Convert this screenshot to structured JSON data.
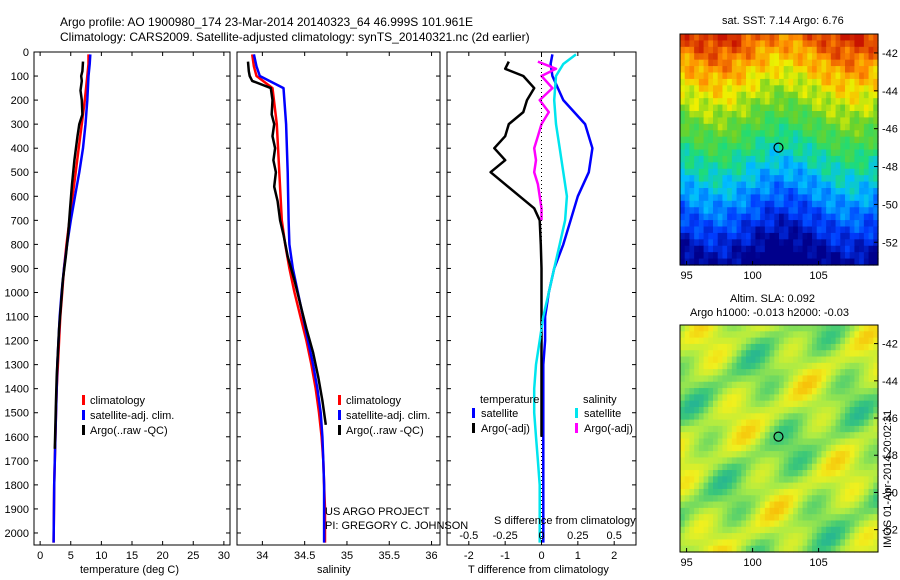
{
  "header": {
    "line1": "Argo profile: AO 1900980_174 23-Mar-2014 20140323_64 46.999S 101.961E",
    "line2": "Climatology: CARS2009. Satellite-adjusted climatology: synTS_20140321.nc (2d earlier)"
  },
  "colors": {
    "red": "#ff0000",
    "blue": "#0000ff",
    "black": "#000000",
    "cyan": "#00e5ee",
    "magenta": "#ff00ff"
  },
  "chart_data": [
    {
      "type": "line",
      "id": "temperature",
      "xlabel": "temperature (deg C)",
      "ylabel": "",
      "xlim": [
        -1,
        31
      ],
      "ylim": [
        2050,
        0
      ],
      "xticks": [
        0,
        5,
        10,
        15,
        20,
        25,
        30
      ],
      "yticks": [
        0,
        100,
        200,
        300,
        400,
        500,
        600,
        700,
        800,
        900,
        1000,
        1100,
        1200,
        1300,
        1400,
        1500,
        1600,
        1700,
        1800,
        1900,
        2000
      ],
      "legend": [
        "climatology",
        "satellite-adj. clim.",
        "Argo(..raw -QC)"
      ],
      "series": [
        {
          "name": "climatology",
          "color": "red",
          "x": [
            7.9,
            7.9,
            7.7,
            7.3,
            6.8,
            6.3,
            5.8,
            5.3,
            4.8,
            4.3,
            3.9,
            3.6,
            3.3,
            3.1,
            2.9,
            2.7,
            2.6,
            2.5,
            2.4,
            2.3,
            2.2
          ],
          "y": [
            10,
            50,
            100,
            200,
            300,
            400,
            500,
            600,
            700,
            800,
            900,
            1000,
            1100,
            1200,
            1300,
            1400,
            1500,
            1600,
            1700,
            1800,
            2040
          ]
        },
        {
          "name": "satellite-adj. clim.",
          "color": "blue",
          "x": [
            8.2,
            8.1,
            7.9,
            7.7,
            7.4,
            7.0,
            6.4,
            5.7,
            5.0,
            4.4,
            3.9,
            3.5,
            3.2,
            3.0,
            2.8,
            2.7,
            2.6,
            2.5,
            2.4,
            2.3,
            2.2
          ],
          "y": [
            10,
            50,
            100,
            200,
            300,
            400,
            500,
            600,
            700,
            800,
            900,
            1000,
            1100,
            1200,
            1300,
            1400,
            1500,
            1600,
            1700,
            1800,
            2040
          ]
        },
        {
          "name": "Argo(..raw -QC)",
          "color": "black",
          "x": [
            7.0,
            6.9,
            6.7,
            6.8,
            6.6,
            6.8,
            6.9,
            6.4,
            6.1,
            5.6,
            5.2,
            4.9,
            4.6,
            4.2,
            3.7,
            3.4,
            3.1,
            2.9,
            2.7,
            2.6,
            2.5,
            2.4
          ],
          "y": [
            40,
            80,
            100,
            120,
            160,
            200,
            260,
            300,
            350,
            450,
            550,
            650,
            750,
            850,
            950,
            1050,
            1150,
            1250,
            1350,
            1450,
            1550,
            1650
          ]
        }
      ]
    },
    {
      "type": "line",
      "id": "salinity",
      "xlabel": "salinity",
      "ylabel": "",
      "xlim": [
        33.7,
        36.1
      ],
      "ylim": [
        2050,
        0
      ],
      "xticks": [
        34,
        34.5,
        35,
        35.5,
        36
      ],
      "legend": [
        "climatology",
        "satellite-adj. clim.",
        "Argo(..raw -QC)"
      ],
      "series": [
        {
          "name": "climatology",
          "color": "red",
          "x": [
            33.88,
            33.9,
            33.93,
            34.12,
            34.17,
            34.2,
            34.23,
            34.27,
            34.32,
            34.38,
            34.45,
            34.52,
            34.58,
            34.63,
            34.67,
            34.7,
            34.72,
            34.73,
            34.74,
            34.74
          ],
          "y": [
            10,
            60,
            100,
            150,
            300,
            500,
            700,
            800,
            900,
            1000,
            1100,
            1200,
            1300,
            1400,
            1500,
            1600,
            1700,
            1800,
            1900,
            2040
          ]
        },
        {
          "name": "satellite-adj. clim.",
          "color": "blue",
          "x": [
            33.9,
            33.93,
            33.97,
            34.25,
            34.28,
            34.3,
            34.31,
            34.32,
            34.36,
            34.42,
            34.48,
            34.54,
            34.6,
            34.65,
            34.69,
            34.71,
            34.72,
            34.73,
            34.73,
            34.73
          ],
          "y": [
            10,
            60,
            100,
            150,
            300,
            500,
            700,
            800,
            900,
            1000,
            1100,
            1200,
            1300,
            1400,
            1500,
            1600,
            1700,
            1800,
            1900,
            2040
          ]
        },
        {
          "name": "Argo(..raw -QC)",
          "color": "black",
          "x": [
            33.83,
            33.84,
            33.85,
            33.88,
            34.1,
            34.12,
            34.11,
            34.14,
            34.12,
            34.15,
            34.13,
            34.16,
            34.14,
            34.18,
            34.21,
            34.25,
            34.3,
            34.38,
            34.45,
            34.52,
            34.6,
            34.66,
            34.71,
            34.75
          ],
          "y": [
            40,
            80,
            100,
            120,
            150,
            200,
            260,
            300,
            350,
            400,
            450,
            500,
            560,
            620,
            700,
            760,
            850,
            950,
            1050,
            1150,
            1250,
            1350,
            1450,
            1550
          ]
        }
      ]
    },
    {
      "type": "line",
      "id": "difference",
      "xlabel": "T difference from climatology",
      "top_axis_label": "S difference from climatology",
      "xlim": [
        -2.6,
        2.6
      ],
      "ylim": [
        2050,
        0
      ],
      "xticks": [
        -2,
        -1,
        0,
        1,
        2
      ],
      "top_ticks": [
        -0.5,
        -0.25,
        0,
        0.25,
        0.5
      ],
      "legend_headers": [
        "temperature",
        "salinity"
      ],
      "legend": [
        "satellite",
        "Argo(-adj)",
        "satellite",
        "Argo(-adj)"
      ],
      "series": [
        {
          "name": "temperature satellite",
          "color": "blue",
          "x": [
            0.3,
            0.25,
            0.3,
            0.6,
            1.2,
            1.4,
            1.3,
            1.0,
            0.8,
            0.6,
            0.35,
            0.2,
            0.1,
            0.1,
            0.05,
            0.05,
            0.05,
            0.05,
            0.05,
            0.05,
            0.05
          ],
          "y": [
            10,
            50,
            100,
            200,
            300,
            400,
            500,
            600,
            700,
            800,
            900,
            1000,
            1100,
            1200,
            1300,
            1400,
            1500,
            1600,
            1700,
            1800,
            2040
          ]
        },
        {
          "name": "temperature Argo(-adj)",
          "color": "black",
          "x": [
            -0.9,
            -1.0,
            -0.5,
            -0.2,
            -0.4,
            -0.5,
            -0.9,
            -1.0,
            -1.3,
            -1.0,
            -1.4,
            -1.0,
            -0.6,
            -0.2,
            -0.05,
            -0.02,
            0,
            0,
            0,
            0
          ],
          "y": [
            40,
            70,
            100,
            150,
            200,
            250,
            300,
            350,
            400,
            450,
            500,
            550,
            600,
            650,
            700,
            800,
            900,
            1000,
            1200,
            1600
          ]
        },
        {
          "name": "salinity satellite",
          "color": "cyan",
          "x": [
            0.95,
            0.6,
            0.4,
            0.35,
            0.4,
            0.5,
            0.6,
            0.7,
            0.65,
            0.5,
            0.35,
            0.2,
            0.05,
            -0.05,
            -0.15,
            -0.2,
            -0.2,
            -0.15,
            -0.1,
            -0.05,
            -0.05
          ],
          "y": [
            10,
            50,
            100,
            200,
            300,
            400,
            500,
            600,
            700,
            800,
            900,
            1000,
            1100,
            1200,
            1300,
            1400,
            1500,
            1600,
            1700,
            1800,
            2040
          ]
        },
        {
          "name": "salinity Argo(-adj)",
          "color": "magenta",
          "x": [
            -0.1,
            0.4,
            0.0,
            0.3,
            -0.05,
            0.2,
            0.0,
            -0.1,
            -0.2,
            -0.15,
            -0.2,
            -0.1,
            -0.05,
            0.0,
            0.0
          ],
          "y": [
            40,
            70,
            100,
            150,
            200,
            250,
            300,
            350,
            400,
            450,
            500,
            550,
            600,
            650,
            700
          ]
        }
      ]
    },
    {
      "type": "heatmap",
      "id": "sst-map",
      "title": "sat. SST: 7.14 Argo: 6.76",
      "xticks": [
        95,
        100,
        105
      ],
      "yticks": [
        -42,
        -44,
        -46,
        -48,
        -50,
        -52
      ],
      "xlim": [
        94.5,
        109.5
      ],
      "ylim": [
        -53.2,
        -41
      ],
      "marker": {
        "lon": 101.961,
        "lat": -46.999
      }
    },
    {
      "type": "heatmap",
      "id": "sla-map",
      "title": "Altim. SLA: 0.092",
      "subtitle": "Argo h1000: -0.013 h2000: -0.03",
      "xticks": [
        95,
        100,
        105
      ],
      "yticks": [
        -42,
        -44,
        -46,
        -48,
        -50,
        -52
      ],
      "xlim": [
        94.5,
        109.5
      ],
      "ylim": [
        -53.2,
        -41
      ],
      "marker": {
        "lon": 101.961,
        "lat": -46.999
      }
    }
  ],
  "footer": {
    "credit_line1": "US ARGO PROJECT",
    "credit_line2": "PI: GREGORY C. JOHNSON",
    "side_stamp": "IMOS 01-Apr-2014 20:02:31"
  }
}
